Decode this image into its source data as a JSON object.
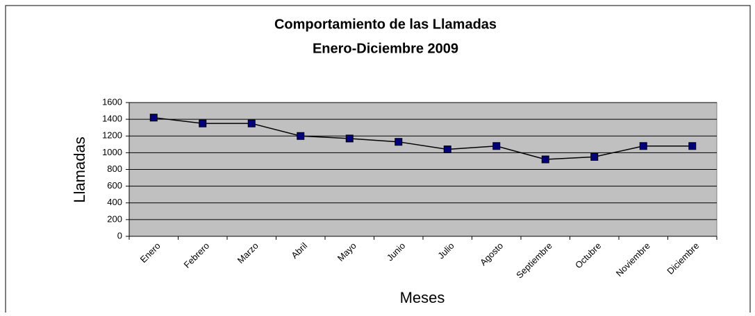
{
  "chart_data": {
    "type": "line",
    "title": "Comportamiento de las Llamadas",
    "subtitle": "Enero-Diciembre 2009",
    "x_label": "Meses",
    "y_label": "Llamadas",
    "categories": [
      "Enero",
      "Febrero",
      "Marzo",
      "Abril",
      "Mayo",
      "Junio",
      "Julio",
      "Agosto",
      "Septiembre",
      "Octubre",
      "Noviembre",
      "Diciembre"
    ],
    "series": [
      {
        "color": "#000080",
        "values": [
          1420,
          1350,
          1350,
          1200,
          1170,
          1130,
          1040,
          1080,
          920,
          950,
          1080,
          1080
        ]
      }
    ],
    "ylim": [
      0,
      1600
    ],
    "yticks": [
      0,
      200,
      400,
      600,
      800,
      1000,
      1200,
      1400,
      1600
    ],
    "grid": true
  }
}
